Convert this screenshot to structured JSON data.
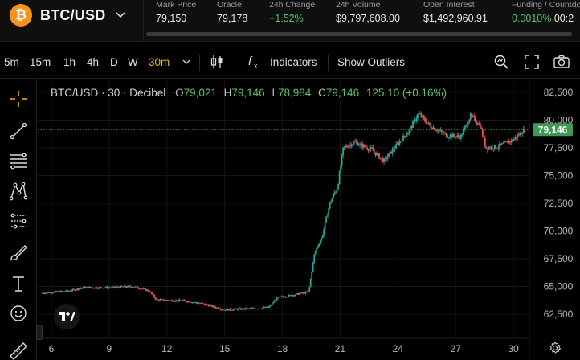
{
  "header": {
    "pair": "BTC/USD",
    "logo_glyph": "₿",
    "stats": [
      {
        "label": "Mark Price",
        "value": "79,150",
        "color": "default"
      },
      {
        "label": "Oracle",
        "value": "79,178",
        "color": "default"
      },
      {
        "label": "24h Change",
        "value": "+1.52%",
        "color": "green"
      },
      {
        "label": "24h Volume",
        "value": "$9,797,608.00",
        "color": "default"
      },
      {
        "label": "Open Interest",
        "value": "$1,492,960.91",
        "color": "default"
      },
      {
        "label": "Funding / Countdown",
        "value": "0.0010%",
        "value2": "00:2",
        "color": "mixed"
      }
    ]
  },
  "toolbar": {
    "timeframes": [
      "5m",
      "15m",
      "1h",
      "4h",
      "D",
      "W",
      "30m"
    ],
    "active_timeframe": "30m",
    "indicators_label": "Indicators",
    "outliers_label": "Show Outliers"
  },
  "left_tools": [
    "crosshair-icon",
    "trendline-icon",
    "fib-icon",
    "pattern-icon",
    "projection-icon",
    "brush-icon",
    "text-icon",
    "emoji-icon",
    "ruler-icon"
  ],
  "chart": {
    "legend": {
      "symbol": "BTC/USD · 30 · Decibel",
      "O": "79,021",
      "H": "79,146",
      "L": "78,984",
      "C": "79,146",
      "change": "125.10 (+0.16%)"
    },
    "last_price_label": "79,146",
    "colors": {
      "up": "#26a69a",
      "down": "#ef5350",
      "accent": "#f0b90b",
      "badge": "#3d9a57",
      "green_text": "#58c26a"
    }
  },
  "chart_data": {
    "type": "candlestick",
    "y_ticks": [
      "82,500",
      "80,000",
      "77,500",
      "75,000",
      "72,500",
      "70,000",
      "67,500",
      "65,000",
      "62,500"
    ],
    "y_tick_values": [
      82500,
      80000,
      77500,
      75000,
      72500,
      70000,
      67500,
      65000,
      62500
    ],
    "ylim": [
      61500,
      83500
    ],
    "x_ticks": [
      "6",
      "9",
      "12",
      "15",
      "18",
      "21",
      "24",
      "27",
      "30"
    ],
    "x_tick_days": [
      6,
      9,
      12,
      15,
      18,
      21,
      24,
      27,
      30
    ],
    "xlim_days": [
      5.4,
      30.9
    ],
    "last_price": 79146,
    "price_path": [
      {
        "day": 5.5,
        "price": 64400
      },
      {
        "day": 7.0,
        "price": 64600
      },
      {
        "day": 7.7,
        "price": 64900
      },
      {
        "day": 9.0,
        "price": 64900
      },
      {
        "day": 10.3,
        "price": 65000
      },
      {
        "day": 11.1,
        "price": 64600
      },
      {
        "day": 11.5,
        "price": 63800
      },
      {
        "day": 13.0,
        "price": 63700
      },
      {
        "day": 14.0,
        "price": 63400
      },
      {
        "day": 15.0,
        "price": 62900
      },
      {
        "day": 16.5,
        "price": 63000
      },
      {
        "day": 17.3,
        "price": 63100
      },
      {
        "day": 17.8,
        "price": 64000
      },
      {
        "day": 18.8,
        "price": 64300
      },
      {
        "day": 19.4,
        "price": 64500
      },
      {
        "day": 19.7,
        "price": 68000
      },
      {
        "day": 20.1,
        "price": 69500
      },
      {
        "day": 20.5,
        "price": 72500
      },
      {
        "day": 20.9,
        "price": 74000
      },
      {
        "day": 21.2,
        "price": 77500
      },
      {
        "day": 21.8,
        "price": 78000
      },
      {
        "day": 22.7,
        "price": 77300
      },
      {
        "day": 23.3,
        "price": 76300
      },
      {
        "day": 24.0,
        "price": 77800
      },
      {
        "day": 24.6,
        "price": 79000
      },
      {
        "day": 25.1,
        "price": 80600
      },
      {
        "day": 25.7,
        "price": 79500
      },
      {
        "day": 26.6,
        "price": 78600
      },
      {
        "day": 27.3,
        "price": 78500
      },
      {
        "day": 27.8,
        "price": 80400
      },
      {
        "day": 28.3,
        "price": 79600
      },
      {
        "day": 28.6,
        "price": 77500
      },
      {
        "day": 29.2,
        "price": 77600
      },
      {
        "day": 30.0,
        "price": 78200
      },
      {
        "day": 30.6,
        "price": 79146
      }
    ]
  }
}
